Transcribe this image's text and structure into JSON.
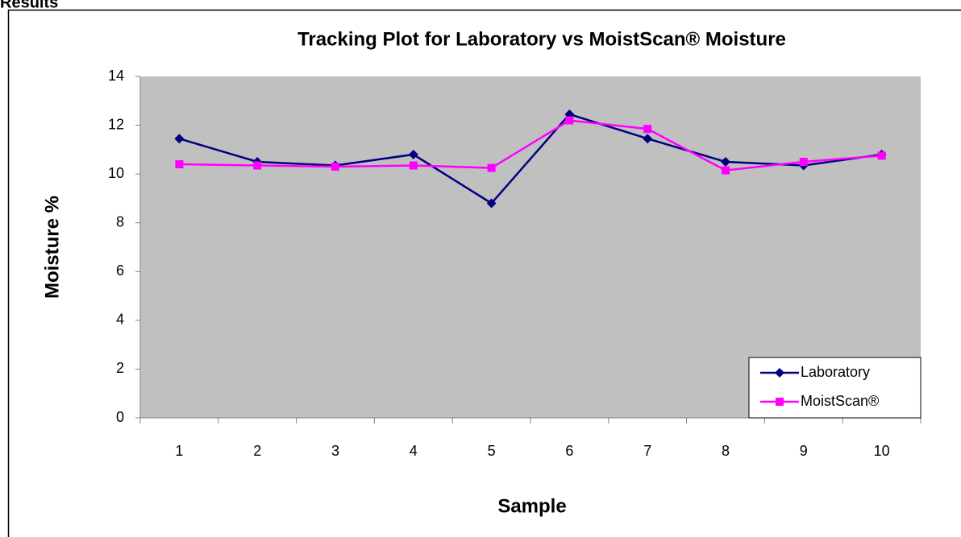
{
  "heading": "Results",
  "chart_data": {
    "type": "line",
    "title": "Tracking Plot for Laboratory vs MoistScan® Moisture",
    "x_label": "Sample",
    "y_label": "Moisture %",
    "categories": [
      "1",
      "2",
      "3",
      "4",
      "5",
      "6",
      "7",
      "8",
      "9",
      "10"
    ],
    "series": [
      {
        "name": "Laboratory",
        "color": "#000080",
        "marker": "diamond",
        "values": [
          11.45,
          10.5,
          10.35,
          10.8,
          8.8,
          12.45,
          11.45,
          10.5,
          10.35,
          10.8
        ]
      },
      {
        "name": "MoistScan®",
        "color": "#ff00ff",
        "marker": "square",
        "values": [
          10.4,
          10.35,
          10.3,
          10.35,
          10.25,
          12.2,
          11.85,
          10.15,
          10.5,
          10.75
        ]
      }
    ],
    "ylim": [
      0,
      14
    ],
    "yticks": [
      0,
      2,
      4,
      6,
      8,
      10,
      12,
      14
    ],
    "plot_background": "#c0c0c0",
    "legend": "lower right"
  }
}
